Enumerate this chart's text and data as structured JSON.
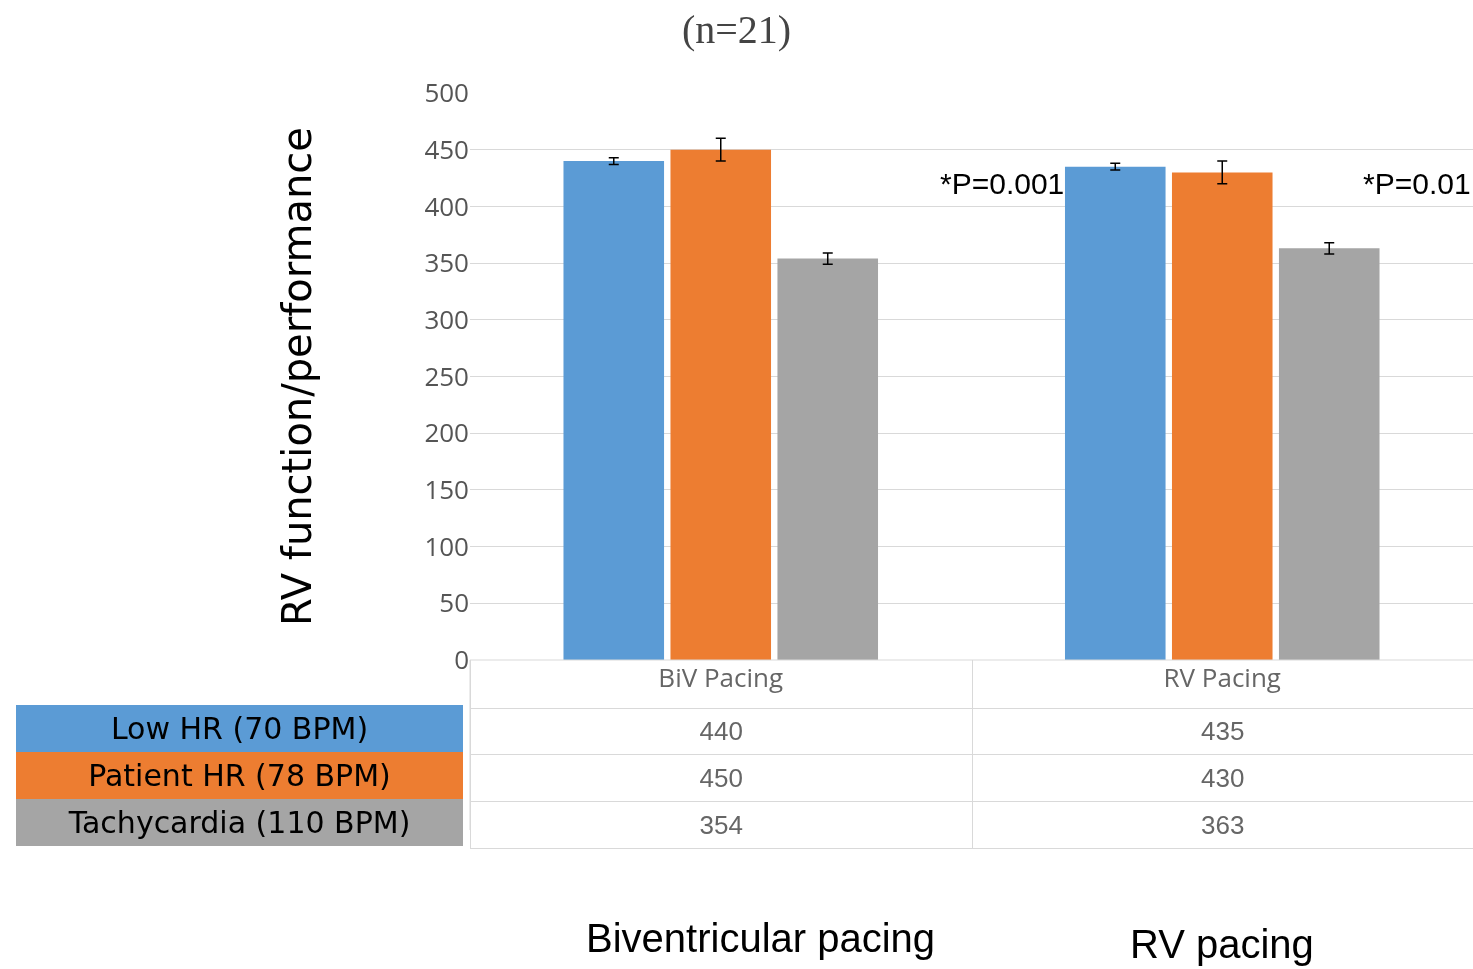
{
  "chart_data": {
    "type": "bar",
    "title": "(n=21)",
    "ylabel": "RV function/performance",
    "categories": [
      "BiV Pacing",
      "RV Pacing"
    ],
    "series": [
      {
        "name": "Low HR (70 BPM)",
        "color": "#5b9bd5",
        "values": [
          440,
          435
        ],
        "errors": [
          3,
          3
        ]
      },
      {
        "name": "Patient HR (78 BPM)",
        "color": "#ed7d31",
        "values": [
          450,
          430
        ],
        "errors": [
          10,
          10
        ]
      },
      {
        "name": "Tachycardia (110 BPM)",
        "color": "#a5a5a5",
        "values": [
          354,
          363
        ],
        "errors": [
          5,
          5
        ]
      }
    ],
    "ylim": [
      0,
      500
    ],
    "yticks": [
      0,
      50,
      100,
      150,
      200,
      250,
      300,
      350,
      400,
      450,
      500
    ],
    "grid": "y",
    "data_labels": true,
    "annotations": [
      "*P=0.001",
      "*P=0.01",
      "Biventricular pacing",
      "RV pacing"
    ]
  }
}
